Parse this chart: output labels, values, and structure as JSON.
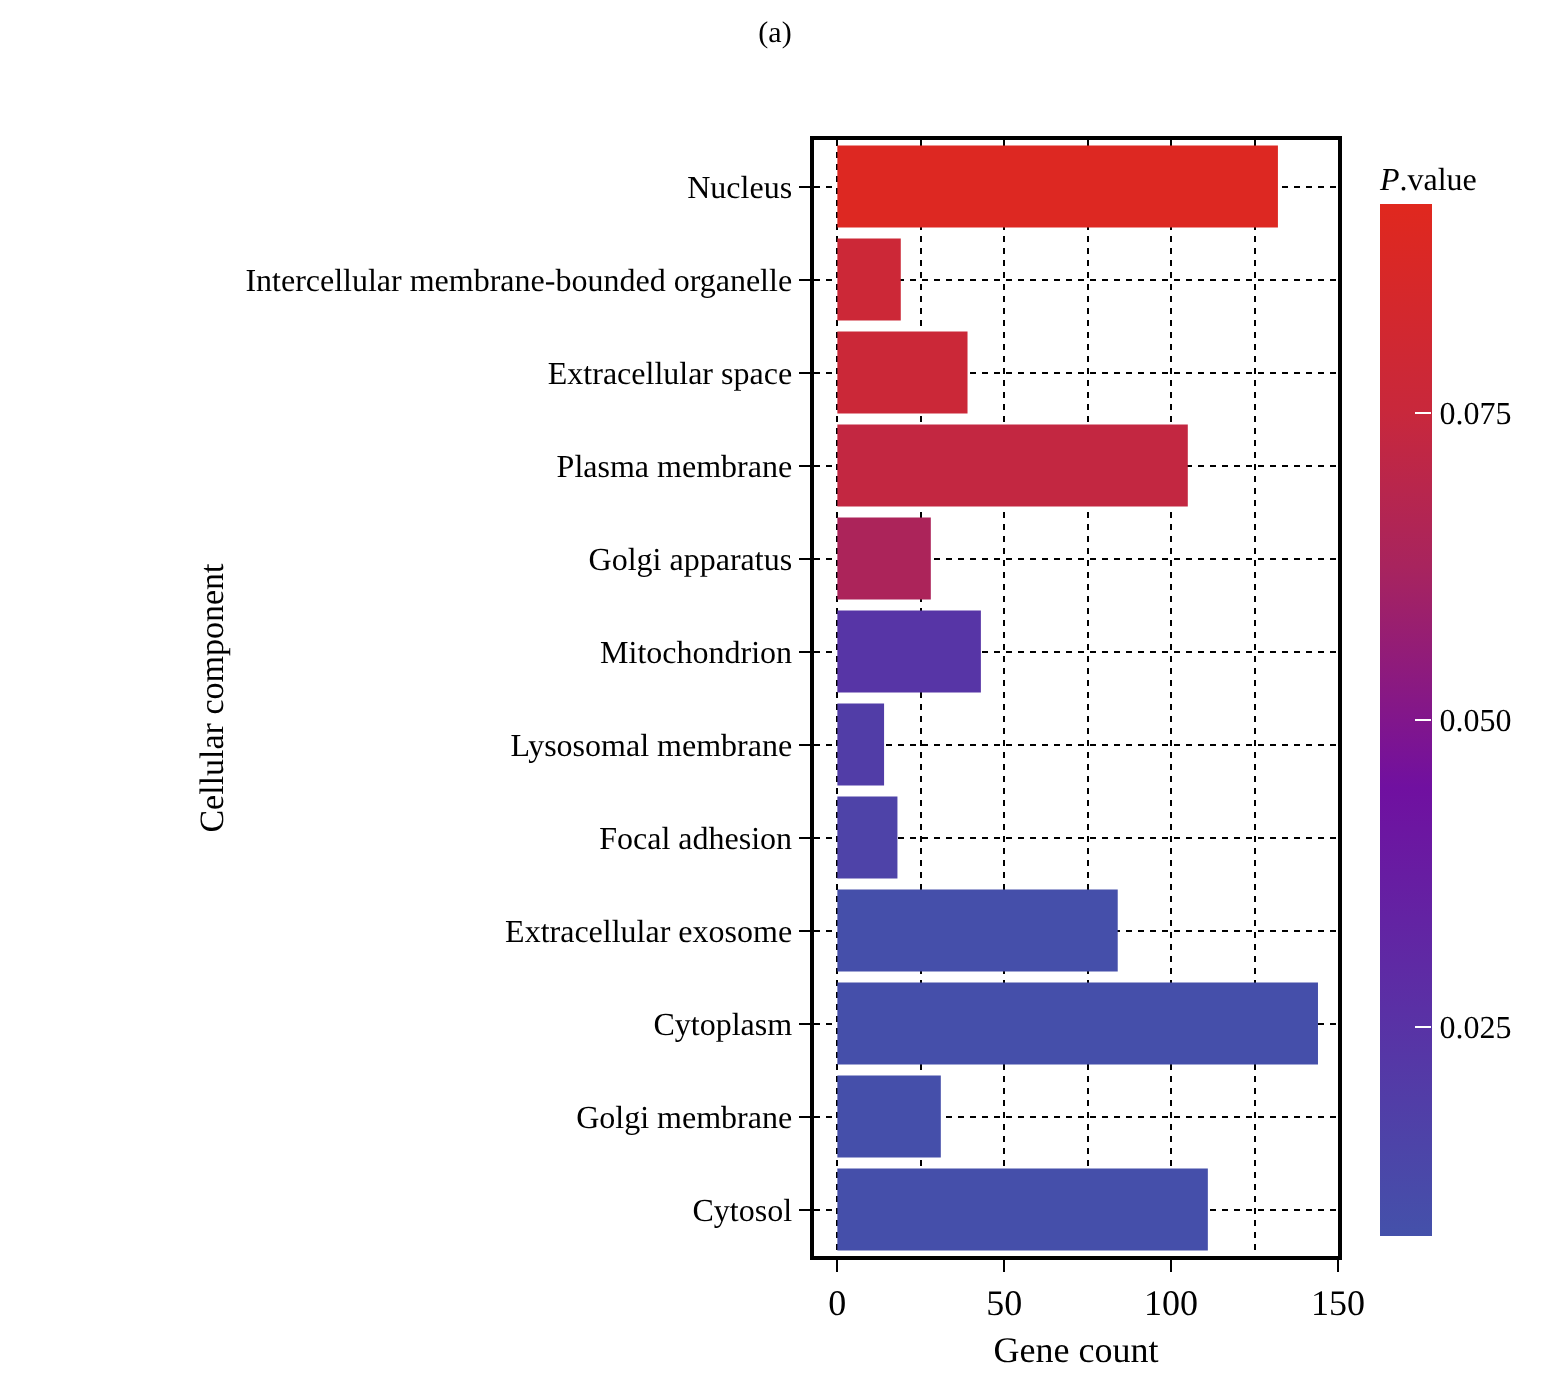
{
  "chart_data": {
    "type": "bar",
    "orientation": "horizontal",
    "title": "(a)",
    "xlabel": "Gene count",
    "ylabel": "Cellular component",
    "clabel": "P.value",
    "categories": [
      "Nucleus",
      "Intercellular membrane-bounded organelle",
      "Extracellular space",
      "Plasma membrane",
      "Golgi apparatus",
      "Mitochondrion",
      "Lysosomal membrane",
      "Focal adhesion",
      "Extracellular exosome",
      "Cytoplasm",
      "Golgi membrane",
      "Cytosol"
    ],
    "values": [
      132,
      19,
      39,
      105,
      28,
      43,
      14,
      18,
      84,
      144,
      31,
      111
    ],
    "cvalues": [
      0.09,
      0.078,
      0.077,
      0.073,
      0.064,
      0.024,
      0.019,
      0.016,
      0.009,
      0.009,
      0.009,
      0.009
    ],
    "clim": [
      0.008,
      0.092
    ],
    "cticks": [
      {
        "value": 0.025,
        "label": "0.025"
      },
      {
        "value": 0.05,
        "label": "0.050"
      },
      {
        "value": 0.075,
        "label": "0.075"
      }
    ],
    "xlim": [
      -7,
      150
    ],
    "xticks": [
      0,
      50,
      100,
      150
    ],
    "grid": true
  }
}
